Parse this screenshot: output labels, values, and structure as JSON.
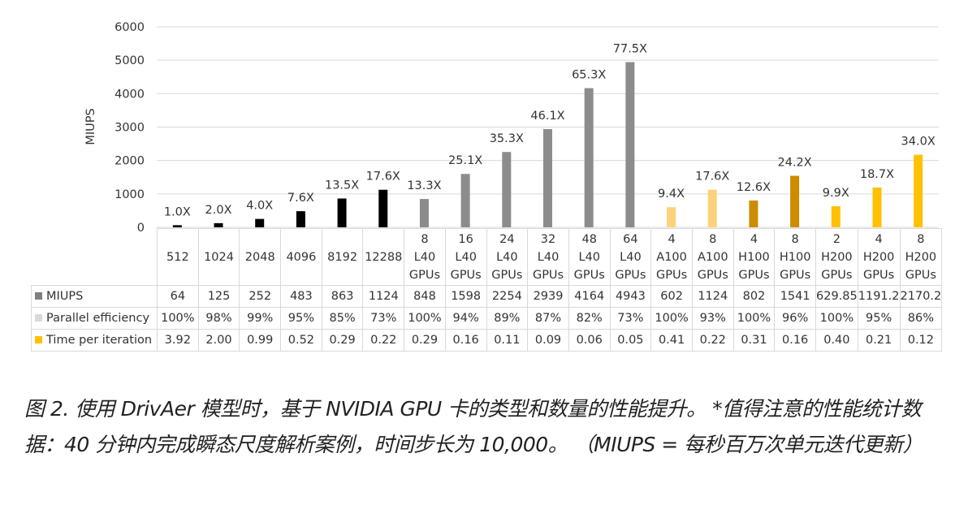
{
  "chart_data": {
    "type": "bar",
    "ylabel": "MIUPS",
    "ylim": [
      0,
      6000
    ],
    "yticks": [
      0,
      1000,
      2000,
      3000,
      4000,
      5000,
      6000
    ],
    "grid": true,
    "categories": [
      [
        "512"
      ],
      [
        "1024"
      ],
      [
        "2048"
      ],
      [
        "4096"
      ],
      [
        "8192"
      ],
      [
        "12288"
      ],
      [
        "8",
        "L40",
        "GPUs"
      ],
      [
        "16",
        "L40",
        "GPUs"
      ],
      [
        "24",
        "L40",
        "GPUs"
      ],
      [
        "32",
        "L40",
        "GPUs"
      ],
      [
        "48",
        "L40",
        "GPUs"
      ],
      [
        "64",
        "L40",
        "GPUs"
      ],
      [
        "4",
        "A100",
        "GPUs"
      ],
      [
        "8",
        "A100",
        "GPUs"
      ],
      [
        "4",
        "H100",
        "GPUs"
      ],
      [
        "8",
        "H100",
        "GPUs"
      ],
      [
        "2",
        "H200",
        "GPUs"
      ],
      [
        "4",
        "H200",
        "GPUs"
      ],
      [
        "8",
        "H200",
        "GPUs"
      ]
    ],
    "values": [
      64,
      125,
      252,
      483,
      863,
      1124,
      848,
      1598,
      2254,
      2939,
      4164,
      4943,
      602,
      1124,
      802,
      1541,
      629.85,
      1191.2,
      2170.2
    ],
    "data_labels": [
      "1.0X",
      "2.0X",
      "4.0X",
      "7.6X",
      "13.5X",
      "17.6X",
      "13.3X",
      "25.1X",
      "35.3X",
      "46.1X",
      "65.3X",
      "77.5X",
      "9.4X",
      "17.6X",
      "12.6X",
      "24.2X",
      "9.9X",
      "18.7X",
      "34.0X"
    ],
    "bar_colors": [
      "#000000",
      "#000000",
      "#000000",
      "#000000",
      "#000000",
      "#000000",
      "#8c8c8c",
      "#8c8c8c",
      "#8c8c8c",
      "#8c8c8c",
      "#8c8c8c",
      "#8c8c8c",
      "#fdd27a",
      "#fdd27a",
      "#cc8c00",
      "#cc8c00",
      "#ffc000",
      "#ffc000",
      "#ffc000"
    ],
    "table": {
      "rows": [
        {
          "name": "MIUPS",
          "swatch": "#7f7f7f",
          "values": [
            "64",
            "125",
            "252",
            "483",
            "863",
            "1124",
            "848",
            "1598",
            "2254",
            "2939",
            "4164",
            "4943",
            "602",
            "1124",
            "802",
            "1541",
            "629.85",
            "1191.2",
            "2170.2"
          ]
        },
        {
          "name": "Parallel efficiency",
          "swatch": "#d9d9d9",
          "values": [
            "100%",
            "98%",
            "99%",
            "95%",
            "85%",
            "73%",
            "100%",
            "94%",
            "89%",
            "87%",
            "82%",
            "73%",
            "100%",
            "93%",
            "100%",
            "96%",
            "100%",
            "95%",
            "86%"
          ]
        },
        {
          "name": "Time per iteration",
          "swatch": "#ffc000",
          "values": [
            "3.92",
            "2.00",
            "0.99",
            "0.52",
            "0.29",
            "0.22",
            "0.29",
            "0.16",
            "0.11",
            "0.09",
            "0.06",
            "0.05",
            "0.41",
            "0.22",
            "0.31",
            "0.16",
            "0.40",
            "0.21",
            "0.12"
          ]
        }
      ]
    }
  },
  "caption": "图 2. 使用 DrivAer 模型时，基于 NVIDIA GPU 卡的类型和数量的性能提升。 *值得注意的性能统计数据：40 分钟内完成瞬态尺度解析案例，时间步长为 10,000。 （MIUPS = 每秒百万次单元迭代更新）"
}
